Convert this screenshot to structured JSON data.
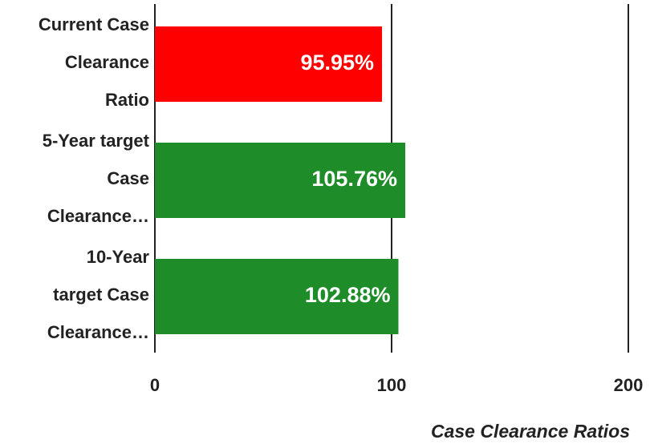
{
  "chart_data": {
    "type": "bar",
    "orientation": "horizontal",
    "categories": [
      [
        "Current Case",
        "Clearance",
        "Ratio"
      ],
      [
        "5-Year target",
        "Case",
        "Clearance…"
      ],
      [
        "10-Year",
        "target Case",
        "Clearance…"
      ]
    ],
    "values": [
      95.95,
      105.76,
      102.88
    ],
    "value_labels": [
      "95.95%",
      "105.76%",
      "102.88%"
    ],
    "colors": [
      "#ff0000",
      "#1e8c28"
    ],
    "bar_colors": [
      "#ff0000",
      "#1e8c28",
      "#1e8c28"
    ],
    "xlim": [
      0,
      200
    ],
    "xticks": [
      0,
      100,
      200
    ],
    "xlabel": "Case Clearance Ratios",
    "grid": true
  }
}
